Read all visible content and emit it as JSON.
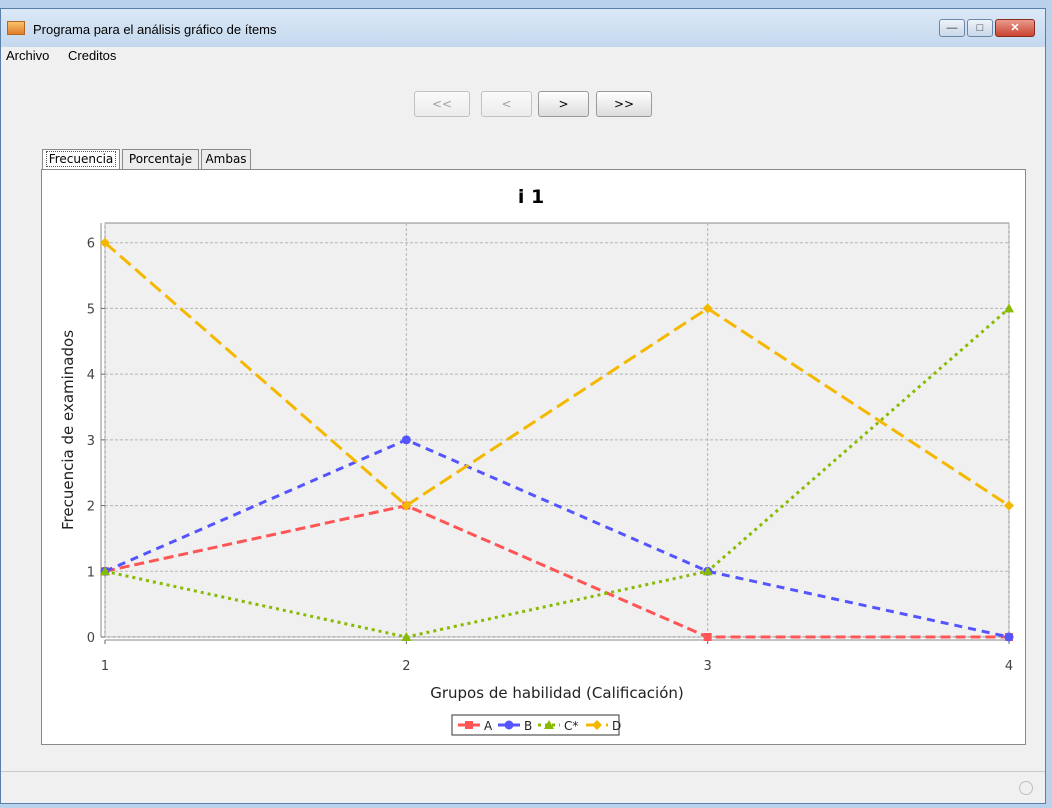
{
  "window": {
    "title": "Programa para el análisis gráfico de ítems"
  },
  "menu": [
    {
      "label": "Archivo"
    },
    {
      "label": "Creditos"
    }
  ],
  "nav": {
    "first": "<<",
    "prev": "<",
    "next": ">",
    "last": ">>"
  },
  "tabs": [
    {
      "label": "Frecuencia"
    },
    {
      "label": "Porcentaje"
    },
    {
      "label": "Ambas"
    }
  ],
  "chart_data": {
    "type": "line",
    "title": "i 1",
    "xlabel": "Grupos de habilidad (Calificación)",
    "ylabel": "Frecuencia de examinados",
    "x": [
      1,
      2,
      3,
      4
    ],
    "xlim": [
      1,
      4
    ],
    "ylim": [
      0,
      6.3
    ],
    "yticks": [
      0,
      1,
      2,
      3,
      4,
      5,
      6
    ],
    "grid": true,
    "legend_position": "bottom",
    "series": [
      {
        "name": "A",
        "values": [
          1,
          2,
          0,
          0
        ],
        "color": "#ff5555",
        "marker": "square"
      },
      {
        "name": "B",
        "values": [
          1,
          3,
          1,
          0
        ],
        "color": "#5555ff",
        "marker": "circle"
      },
      {
        "name": "C*",
        "values": [
          1,
          0,
          1,
          5
        ],
        "color": "#88bb00",
        "marker": "triangle"
      },
      {
        "name": "D",
        "values": [
          6,
          2,
          5,
          2
        ],
        "color": "#f5b800",
        "marker": "diamond"
      }
    ]
  }
}
